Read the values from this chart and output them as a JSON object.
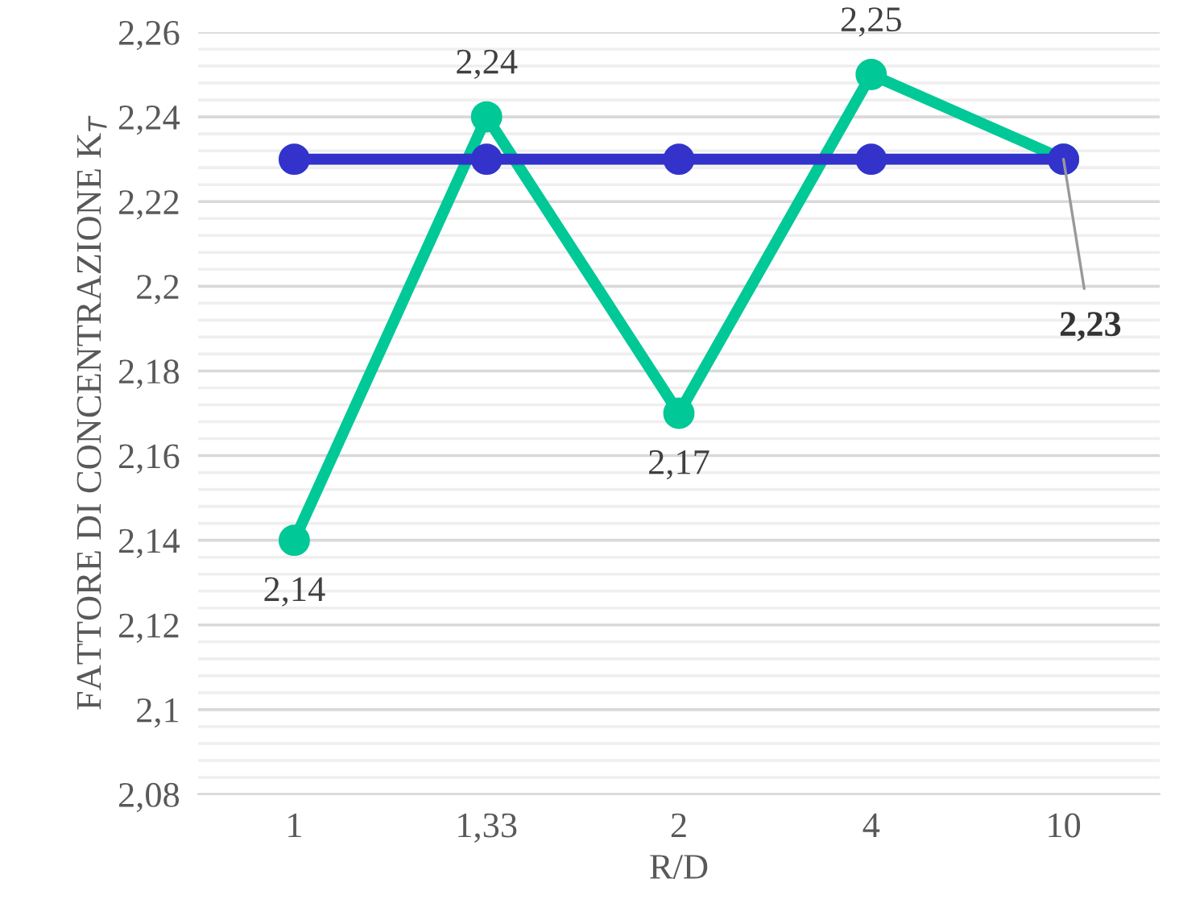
{
  "chart_data": {
    "type": "line",
    "xlabel": "R/D",
    "ylabel": "FATTORE DI CONCENTRAZIONE K$_{T}$",
    "categories": [
      "1",
      "1,33",
      "2",
      "4",
      "10"
    ],
    "series": [
      {
        "color": "#00c896",
        "values": [
          2.14,
          2.24,
          2.17,
          2.25,
          2.23
        ],
        "value_labels": [
          "2,14",
          "2,24",
          "2,17",
          "2,25",
          "2,23"
        ]
      },
      {
        "color": "#3333cc",
        "values": [
          2.23,
          2.23,
          2.23,
          2.23,
          2.23
        ]
      }
    ],
    "ylim": [
      2.08,
      2.26
    ],
    "yticks": [
      {
        "value": 2.08,
        "label": "2,08"
      },
      {
        "value": 2.1,
        "label": "2,1"
      },
      {
        "value": 2.12,
        "label": "2,12"
      },
      {
        "value": 2.14,
        "label": "2,14"
      },
      {
        "value": 2.16,
        "label": "2,16"
      },
      {
        "value": 2.18,
        "label": "2,18"
      },
      {
        "value": 2.2,
        "label": "2,2"
      },
      {
        "value": 2.22,
        "label": "2,22"
      },
      {
        "value": 2.24,
        "label": "2,24"
      },
      {
        "value": 2.26,
        "label": "2,26"
      }
    ],
    "grid": "y",
    "marker": "circle",
    "line_style": "solid",
    "legend": false
  }
}
